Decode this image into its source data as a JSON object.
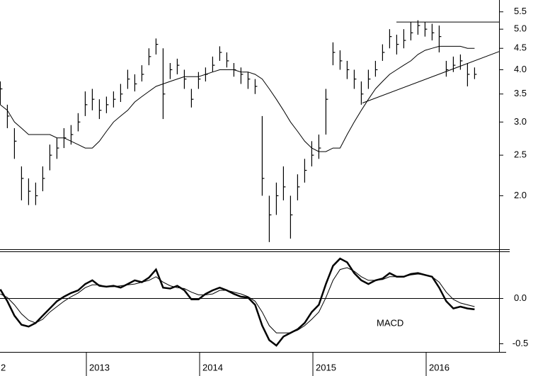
{
  "chart_data": [
    {
      "type": "ohlc",
      "log": true,
      "color": "#000000",
      "x": [
        2012.24,
        2012.3025,
        2012.365,
        2012.4275,
        2012.49,
        2012.5525,
        2012.615,
        2012.6775,
        2012.74,
        2012.8025,
        2012.865,
        2012.9275,
        2012.99,
        2013.0525,
        2013.115,
        2013.1775,
        2013.24,
        2013.3025,
        2013.365,
        2013.4275,
        2013.49,
        2013.5525,
        2013.615,
        2013.6775,
        2013.74,
        2013.8025,
        2013.865,
        2013.9275,
        2013.99,
        2014.0525,
        2014.115,
        2014.1775,
        2014.24,
        2014.3025,
        2014.365,
        2014.4275,
        2014.49,
        2014.5525,
        2014.615,
        2014.6775,
        2014.74,
        2014.8025,
        2014.865,
        2014.9275,
        2014.99,
        2015.0525,
        2015.115,
        2015.1775,
        2015.24,
        2015.3025,
        2015.365,
        2015.4275,
        2015.49,
        2015.5525,
        2015.615,
        2015.6775,
        2015.74,
        2015.8025,
        2015.865,
        2015.9275,
        2015.99,
        2016.0525,
        2016.115,
        2016.1775,
        2016.24,
        2016.3025,
        2016.365,
        2016.4275
      ],
      "high": [
        3.75,
        3.3,
        2.9,
        2.35,
        2.2,
        2.15,
        2.35,
        2.65,
        2.75,
        2.9,
        2.95,
        3.15,
        3.55,
        3.6,
        3.4,
        3.45,
        3.55,
        3.7,
        4.0,
        3.9,
        4.1,
        4.5,
        4.75,
        4.5,
        4.15,
        4.25,
        4.0,
        3.6,
        3.95,
        4.05,
        4.3,
        4.55,
        4.4,
        4.15,
        4.05,
        3.95,
        3.8,
        3.1,
        2.0,
        2.15,
        2.35,
        2.0,
        2.25,
        2.45,
        2.7,
        2.8,
        3.6,
        4.65,
        4.45,
        4.2,
        4.0,
        3.75,
        4.0,
        4.2,
        4.6,
        5.0,
        4.85,
        5.0,
        5.2,
        5.25,
        5.2,
        5.15,
        5.1,
        4.2,
        4.3,
        4.35,
        4.15,
        4.05
      ],
      "low": [
        3.3,
        2.9,
        2.45,
        1.95,
        1.9,
        1.9,
        2.05,
        2.3,
        2.45,
        2.6,
        2.65,
        2.85,
        3.1,
        3.2,
        3.05,
        3.15,
        3.25,
        3.35,
        3.6,
        3.55,
        3.75,
        4.1,
        4.35,
        3.05,
        3.8,
        3.9,
        3.6,
        3.25,
        3.6,
        3.75,
        3.95,
        4.2,
        4.05,
        3.85,
        3.7,
        3.6,
        3.5,
        2.0,
        1.55,
        1.8,
        1.95,
        1.58,
        1.95,
        2.15,
        2.35,
        2.45,
        2.8,
        4.1,
        4.0,
        3.8,
        3.6,
        3.3,
        3.6,
        3.85,
        4.2,
        4.5,
        4.35,
        4.5,
        4.7,
        4.85,
        4.8,
        4.7,
        4.4,
        3.85,
        3.95,
        4.0,
        3.65,
        3.8
      ],
      "close": [
        3.6,
        3.1,
        2.7,
        2.2,
        2.05,
        2.0,
        2.2,
        2.5,
        2.6,
        2.75,
        2.8,
        3.0,
        3.3,
        3.4,
        3.2,
        3.3,
        3.4,
        3.5,
        3.8,
        3.7,
        3.9,
        4.3,
        4.6,
        3.5,
        4.0,
        4.1,
        3.8,
        3.4,
        3.8,
        3.9,
        4.1,
        4.4,
        4.2,
        4.0,
        3.9,
        3.8,
        3.65,
        2.2,
        1.8,
        2.0,
        2.1,
        1.8,
        2.1,
        2.3,
        2.5,
        2.6,
        3.4,
        4.4,
        4.2,
        4.0,
        3.8,
        3.5,
        3.8,
        4.0,
        4.4,
        4.8,
        4.6,
        4.7,
        4.9,
        5.1,
        5.0,
        4.9,
        4.8,
        4.0,
        4.1,
        4.2,
        3.9,
        3.9
      ],
      "ma": {
        "values": [
          3.3,
          3.2,
          3.0,
          2.9,
          2.8,
          2.8,
          2.8,
          2.8,
          2.75,
          2.75,
          2.7,
          2.65,
          2.6,
          2.6,
          2.7,
          2.85,
          3.0,
          3.1,
          3.2,
          3.35,
          3.45,
          3.55,
          3.65,
          3.7,
          3.75,
          3.8,
          3.85,
          3.85,
          3.85,
          3.9,
          3.95,
          4.0,
          4.0,
          4.0,
          3.95,
          3.95,
          3.9,
          3.8,
          3.6,
          3.4,
          3.2,
          3.0,
          2.85,
          2.7,
          2.6,
          2.55,
          2.55,
          2.6,
          2.6,
          2.8,
          3.0,
          3.2,
          3.4,
          3.6,
          3.75,
          3.9,
          4.0,
          4.1,
          4.2,
          4.35,
          4.45,
          4.5,
          4.55,
          4.55,
          4.55,
          4.55,
          4.5,
          4.5
        ]
      },
      "lines": [
        {
          "x": [
            2015.7375,
            2016.64375
          ],
          "y": [
            5.2,
            5.2
          ]
        },
        {
          "x": [
            2015.4375,
            2016.64375
          ],
          "y": [
            3.33,
            4.42
          ]
        }
      ],
      "xlim": [
        2012.2375,
        2016.64375
      ],
      "ylim": [
        1.49,
        5.87
      ],
      "yticks": [
        5.5,
        {
          "value": 5,
          "label": "5.0"
        },
        4.5,
        {
          "value": 4,
          "label": "4.0"
        },
        3.5,
        {
          "value": 3,
          "label": "3.0"
        },
        2.5,
        {
          "value": 2,
          "label": "2.0"
        }
      ]
    },
    {
      "type": "line",
      "color": "#000000",
      "zero_line": true,
      "annotation": "MACD",
      "x": [
        2012.24,
        2012.3025,
        2012.365,
        2012.4275,
        2012.49,
        2012.5525,
        2012.615,
        2012.6775,
        2012.74,
        2012.8025,
        2012.865,
        2012.9275,
        2012.99,
        2013.0525,
        2013.115,
        2013.1775,
        2013.24,
        2013.3025,
        2013.365,
        2013.4275,
        2013.49,
        2013.5525,
        2013.615,
        2013.6775,
        2013.74,
        2013.8025,
        2013.865,
        2013.9275,
        2013.99,
        2014.0525,
        2014.115,
        2014.1775,
        2014.24,
        2014.3025,
        2014.365,
        2014.4275,
        2014.49,
        2014.5525,
        2014.615,
        2014.6775,
        2014.74,
        2014.8025,
        2014.865,
        2014.9275,
        2014.99,
        2015.0525,
        2015.115,
        2015.1775,
        2015.24,
        2015.3025,
        2015.365,
        2015.4275,
        2015.49,
        2015.5525,
        2015.615,
        2015.6775,
        2015.74,
        2015.8025,
        2015.865,
        2015.9275,
        2015.99,
        2016.0525,
        2016.115,
        2016.1775,
        2016.24,
        2016.3025,
        2016.365,
        2016.4275
      ],
      "series": [
        {
          "width": 2.5,
          "values": [
            0.1,
            -0.03,
            -0.19,
            -0.29,
            -0.31,
            -0.27,
            -0.19,
            -0.11,
            -0.03,
            0.02,
            0.06,
            0.09,
            0.16,
            0.2,
            0.14,
            0.13,
            0.14,
            0.12,
            0.16,
            0.2,
            0.18,
            0.23,
            0.32,
            0.12,
            0.11,
            0.14,
            0.09,
            -0.01,
            -0.01,
            0.05,
            0.09,
            0.12,
            0.09,
            0.05,
            0.02,
            0.01,
            -0.07,
            -0.3,
            -0.46,
            -0.52,
            -0.42,
            -0.38,
            -0.34,
            -0.27,
            -0.15,
            -0.07,
            0.16,
            0.36,
            0.44,
            0.4,
            0.28,
            0.2,
            0.16,
            0.2,
            0.22,
            0.28,
            0.24,
            0.24,
            0.27,
            0.28,
            0.26,
            0.24,
            0.12,
            -0.03,
            -0.11,
            -0.09,
            -0.11,
            -0.12
          ]
        },
        {
          "width": 1,
          "values": [
            0.05,
            0.01,
            -0.07,
            -0.17,
            -0.24,
            -0.27,
            -0.23,
            -0.15,
            -0.09,
            -0.03,
            0.02,
            0.06,
            0.12,
            0.15,
            0.15,
            0.13,
            0.13,
            0.14,
            0.15,
            0.16,
            0.18,
            0.2,
            0.24,
            0.18,
            0.14,
            0.12,
            0.11,
            0.07,
            0.04,
            0.04,
            0.05,
            0.09,
            0.09,
            0.07,
            0.05,
            0.02,
            -0.03,
            -0.15,
            -0.3,
            -0.38,
            -0.38,
            -0.38,
            -0.35,
            -0.3,
            -0.23,
            -0.15,
            0.01,
            0.2,
            0.32,
            0.34,
            0.3,
            0.24,
            0.2,
            0.2,
            0.21,
            0.24,
            0.24,
            0.24,
            0.26,
            0.27,
            0.26,
            0.24,
            0.18,
            0.07,
            -0.01,
            -0.05,
            -0.07,
            -0.09
          ]
        }
      ],
      "xlim": [
        2012.2375,
        2016.64375
      ],
      "ylim": [
        -0.59,
        0.52
      ],
      "yticks": [
        {
          "value": 0,
          "label": "0.0"
        },
        -0.5
      ],
      "xticks": [
        {
          "value": 2012,
          "label": "2"
        },
        2013,
        2014,
        2015,
        2016
      ]
    }
  ]
}
